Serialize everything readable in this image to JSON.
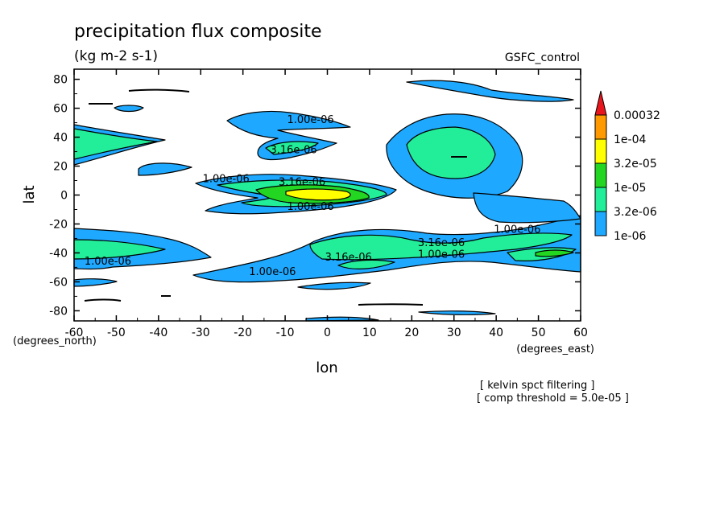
{
  "chart_data": {
    "type": "heatmap",
    "title": "precipitation flux composite",
    "subtitle": "(kg m-2 s-1)",
    "model": "GSFC_control",
    "xlabel": "lon",
    "ylabel": "lat",
    "x_units": "(degrees_east)",
    "y_units": "(degrees_north)",
    "xlim": [
      -60,
      60
    ],
    "ylim": [
      -87,
      87
    ],
    "x_ticks": [
      -60,
      -50,
      -40,
      -30,
      -20,
      -10,
      0,
      10,
      20,
      30,
      40,
      50,
      60
    ],
    "y_ticks": [
      -80,
      -60,
      -40,
      -20,
      0,
      20,
      40,
      60,
      80
    ],
    "notes": [
      "[ kelvin spct filtering ]",
      "[ comp threshold = 5.0e-05 ]"
    ],
    "colorbar": {
      "labels": [
        "0.00032",
        "1e-04",
        "3.2e-05",
        "1e-05",
        "3.2e-06",
        "1e-06"
      ],
      "colors": [
        "#e8161c",
        "#ff9900",
        "#ffff00",
        "#22d622",
        "#22ee99",
        "#1ea8ff"
      ]
    },
    "contour_labels": [
      {
        "text": "1.00e-06",
        "lon": -4,
        "lat": 52
      },
      {
        "text": "3.16e-06",
        "lon": -8,
        "lat": 31
      },
      {
        "text": "1.00e-06",
        "lon": -24,
        "lat": 11
      },
      {
        "text": "3.16e-06",
        "lon": -6,
        "lat": 9
      },
      {
        "text": "1.00e-06",
        "lon": -4,
        "lat": -8
      },
      {
        "text": "1.00e-06",
        "lon": 45,
        "lat": -24
      },
      {
        "text": "3.16e-06",
        "lon": 27,
        "lat": -33
      },
      {
        "text": "1.00e-06",
        "lon": 27,
        "lat": -41
      },
      {
        "text": "3.16e-06",
        "lon": 5,
        "lat": -43
      },
      {
        "text": "1.00e-06",
        "lon": -52,
        "lat": -46
      },
      {
        "text": "1.00e-06",
        "lon": -13,
        "lat": -53
      }
    ]
  }
}
